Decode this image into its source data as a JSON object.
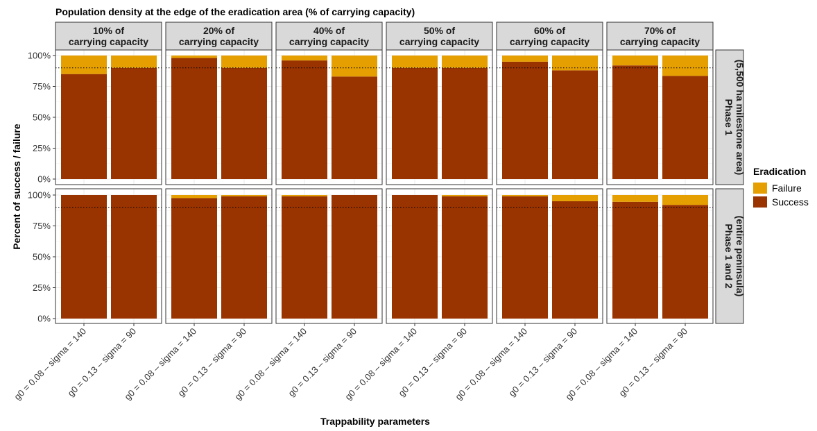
{
  "chart_data": {
    "type": "bar",
    "stacked": true,
    "title": "Population density at the edge of the eradication area (% of carrying capacity)",
    "xlabel": "Trappability parameters",
    "ylabel": "Percent of success / failure",
    "ylim": [
      0,
      100
    ],
    "yticks": [
      "0%",
      "25%",
      "50%",
      "75%",
      "100%"
    ],
    "reference_line": 90,
    "grid": true,
    "categories": [
      "g0 = 0.08 – sigma = 140",
      "g0 = 0.13 – sigma = 90"
    ],
    "columns": [
      {
        "line1": "10% of",
        "line2": "carrying capacity"
      },
      {
        "line1": "20% of",
        "line2": "carrying capacity"
      },
      {
        "line1": "40% of",
        "line2": "carrying capacity"
      },
      {
        "line1": "50% of",
        "line2": "carrying capacity"
      },
      {
        "line1": "60% of",
        "line2": "carrying capacity"
      },
      {
        "line1": "70% of",
        "line2": "carrying capacity"
      }
    ],
    "rows": [
      {
        "line1": "Phase 1",
        "line2": "(5,500 ha milestone area)"
      },
      {
        "line1": "Phase 1 and 2",
        "line2": "(entire peninsula)"
      }
    ],
    "legend": {
      "title": "Eradication",
      "position": "right",
      "items": [
        {
          "label": "Failure",
          "color": "#E69F00"
        },
        {
          "label": "Success",
          "color": "#993300"
        }
      ]
    },
    "series": [
      {
        "name": "Success",
        "values": [
          [
            [
              85,
              90
            ],
            [
              98,
              90
            ],
            [
              96,
              83
            ],
            [
              90,
              90
            ],
            [
              95,
              88
            ],
            [
              92,
              83.5
            ]
          ],
          [
            [
              100,
              100
            ],
            [
              97.5,
              99
            ],
            [
              99,
              100
            ],
            [
              100,
              99
            ],
            [
              99,
              95
            ],
            [
              94.5,
              92
            ]
          ]
        ]
      },
      {
        "name": "Failure",
        "values": [
          [
            [
              15,
              10
            ],
            [
              2,
              10
            ],
            [
              4,
              17
            ],
            [
              10,
              10
            ],
            [
              5,
              12
            ],
            [
              8,
              16.5
            ]
          ],
          [
            [
              0,
              0
            ],
            [
              2.5,
              1
            ],
            [
              1,
              0
            ],
            [
              0,
              1
            ],
            [
              1,
              5
            ],
            [
              5.5,
              8
            ]
          ]
        ]
      }
    ]
  }
}
